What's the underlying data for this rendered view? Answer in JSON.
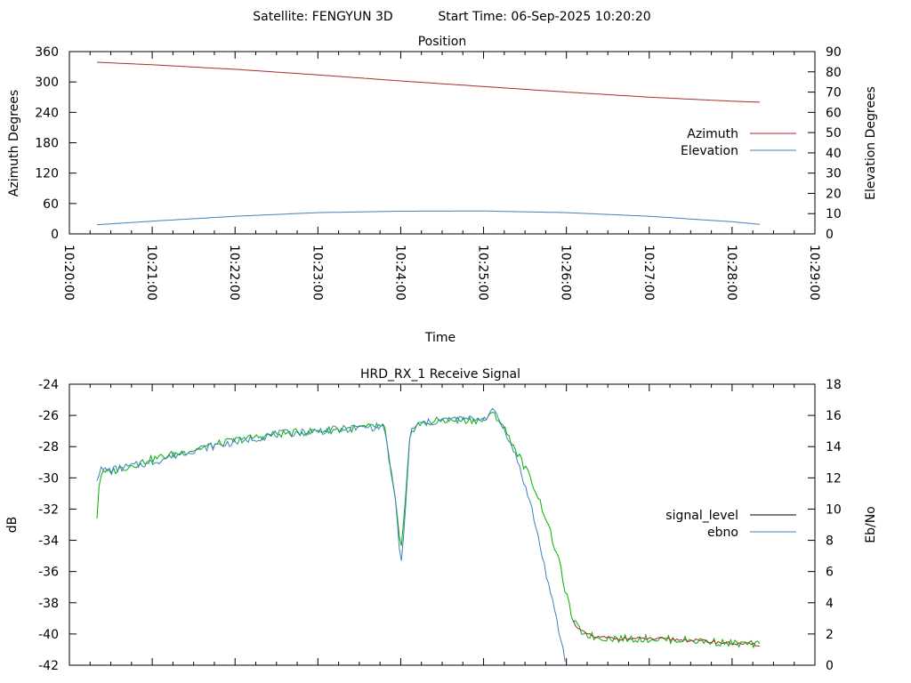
{
  "header": {
    "satellite": "Satellite: FENGYUN 3D",
    "start_time": "Start Time: 06-Sep-2025 10:20:20"
  },
  "colors": {
    "azimuth": "#a52a2a",
    "elevation": "#3f7fbf",
    "signal_level": "#000000",
    "ebno": "#3f7fbf",
    "signal_rendered": "#00b000"
  },
  "chart_data": [
    {
      "type": "line",
      "title": "Position",
      "xlabel": "Time",
      "ylabel": "Azimuth Degrees",
      "y2label": "Elevation Degrees",
      "xlim": [
        "10:20:00",
        "10:29:00"
      ],
      "ylim": [
        0,
        360
      ],
      "y2lim": [
        0,
        90
      ],
      "x_ticks": [
        "10:20:00",
        "10:21:00",
        "10:22:00",
        "10:23:00",
        "10:24:00",
        "10:25:00",
        "10:26:00",
        "10:27:00",
        "10:28:00",
        "10:29:00"
      ],
      "y_ticks": [
        "0",
        "60",
        "120",
        "180",
        "240",
        "300",
        "360"
      ],
      "y2_ticks": [
        "0",
        "10",
        "20",
        "30",
        "40",
        "50",
        "60",
        "70",
        "80",
        "90"
      ],
      "legend_position": "right",
      "series": [
        {
          "name": "Azimuth",
          "axis": "y",
          "x": [
            "10:20:20",
            "10:21:00",
            "10:22:00",
            "10:23:00",
            "10:24:00",
            "10:25:00",
            "10:26:00",
            "10:27:00",
            "10:28:00",
            "10:28:20"
          ],
          "values": [
            339,
            334,
            325,
            314,
            302,
            291,
            280,
            270,
            262,
            260
          ]
        },
        {
          "name": "Elevation",
          "axis": "y2",
          "x": [
            "10:20:20",
            "10:21:00",
            "10:22:00",
            "10:23:00",
            "10:24:00",
            "10:25:00",
            "10:26:00",
            "10:27:00",
            "10:28:00",
            "10:28:20"
          ],
          "values": [
            4.5,
            6.3,
            8.7,
            10.5,
            11.2,
            11.3,
            10.5,
            8.7,
            6.0,
            4.7
          ]
        }
      ]
    },
    {
      "type": "line",
      "title": "HRD_RX_1 Receive Signal",
      "ylabel": "dB",
      "y2label": "Eb/No",
      "xlim": [
        "10:20:00",
        "10:29:00"
      ],
      "ylim": [
        -42,
        -24
      ],
      "y2lim": [
        0,
        18
      ],
      "y_ticks": [
        "-42",
        "-40",
        "-38",
        "-36",
        "-34",
        "-32",
        "-30",
        "-28",
        "-26",
        "-24"
      ],
      "y2_ticks": [
        "0",
        "2",
        "4",
        "6",
        "8",
        "10",
        "12",
        "14",
        "16",
        "18"
      ],
      "legend_position": "right",
      "series": [
        {
          "name": "signal_level",
          "axis": "y",
          "x": [
            "10:20:20",
            "10:20:22",
            "10:20:30",
            "10:21:00",
            "10:21:30",
            "10:22:00",
            "10:22:30",
            "10:23:00",
            "10:23:30",
            "10:23:48",
            "10:23:57",
            "10:24:00",
            "10:24:03",
            "10:24:07",
            "10:24:12",
            "10:24:30",
            "10:25:00",
            "10:25:08",
            "10:25:16",
            "10:25:25",
            "10:25:35",
            "10:25:45",
            "10:25:55",
            "10:26:00",
            "10:26:05",
            "10:26:10",
            "10:26:20",
            "10:26:40",
            "10:27:00",
            "10:27:30",
            "10:28:00",
            "10:28:20"
          ],
          "values": [
            -32.5,
            -29.8,
            -29.6,
            -28.8,
            -28.2,
            -27.6,
            -27.2,
            -27.0,
            -26.8,
            -26.7,
            -32.0,
            -35.0,
            -32.0,
            -27.0,
            -26.6,
            -26.3,
            -26.3,
            -25.9,
            -27.0,
            -28.5,
            -30.2,
            -32.5,
            -35.5,
            -37.5,
            -39.2,
            -39.8,
            -40.2,
            -40.3,
            -40.3,
            -40.4,
            -40.6,
            -40.7
          ]
        },
        {
          "name": "ebno",
          "axis": "y2",
          "x": [
            "10:20:20",
            "10:20:22",
            "10:20:30",
            "10:21:00",
            "10:21:30",
            "10:22:00",
            "10:22:30",
            "10:23:00",
            "10:23:30",
            "10:23:48",
            "10:23:57",
            "10:24:00",
            "10:24:03",
            "10:24:07",
            "10:24:12",
            "10:24:30",
            "10:25:00",
            "10:25:08",
            "10:25:16",
            "10:25:25",
            "10:25:35",
            "10:25:45",
            "10:25:55",
            "10:26:00"
          ],
          "values": [
            12.0,
            12.5,
            12.5,
            13.0,
            13.8,
            14.3,
            14.8,
            15.0,
            15.2,
            15.3,
            10.0,
            6.0,
            9.5,
            15.0,
            15.4,
            15.7,
            15.8,
            16.3,
            15.0,
            13.0,
            10.0,
            6.0,
            2.0,
            0.0
          ]
        }
      ]
    }
  ]
}
